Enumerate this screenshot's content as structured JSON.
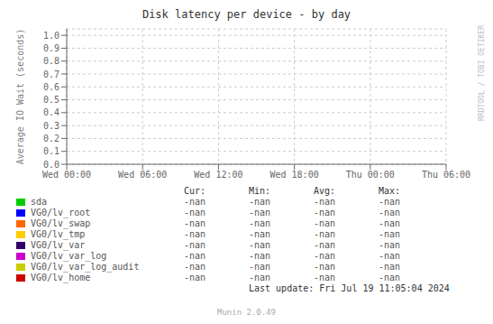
{
  "chart_data": {
    "type": "line",
    "title": "Disk latency per device - by day",
    "y_label": "Average IO Wait (seconds)",
    "xlim": [
      0,
      5
    ],
    "xticks": [
      {
        "value": 0,
        "label": "Wed 00:00"
      },
      {
        "value": 1,
        "label": "Wed 06:00"
      },
      {
        "value": 2,
        "label": "Wed 12:00"
      },
      {
        "value": 3,
        "label": "Wed 18:00"
      },
      {
        "value": 4,
        "label": "Thu 00:00"
      },
      {
        "value": 5,
        "label": "Thu 06:00"
      }
    ],
    "ylim": [
      0.0,
      1.05
    ],
    "yticks": [
      {
        "value": 0,
        "label": "0.0"
      },
      0.1,
      0.2,
      0.3,
      0.4,
      0.5,
      0.6,
      0.7,
      0.8,
      0.9,
      {
        "value": 1,
        "label": "1.0"
      }
    ],
    "grid": true,
    "series": [
      {
        "name": "sda",
        "color": "#00cc00",
        "values": []
      },
      {
        "name": "VG0/lv_root",
        "color": "#0000ff",
        "values": []
      },
      {
        "name": "VG0/lv_swap",
        "color": "#ff6600",
        "values": []
      },
      {
        "name": "VG0/lv_tmp",
        "color": "#ffcc00",
        "values": []
      },
      {
        "name": "VG0/lv_var",
        "color": "#330066",
        "values": []
      },
      {
        "name": "VG0/lv_var_log",
        "color": "#cc00cc",
        "values": []
      },
      {
        "name": "VG0/lv_var_log_audit",
        "color": "#cccc00",
        "values": []
      },
      {
        "name": "VG0/lv_home",
        "color": "#cc0000",
        "values": []
      }
    ],
    "table_headers": [
      "Cur:",
      "Min:",
      "Avg:",
      "Max:"
    ],
    "table_values": "-nan",
    "annotations": [
      "Last update: Fri Jul 19 11:05:04 2024",
      "RRDTOOL / TOBI OETIKER",
      "Munin 2.0.49"
    ]
  }
}
